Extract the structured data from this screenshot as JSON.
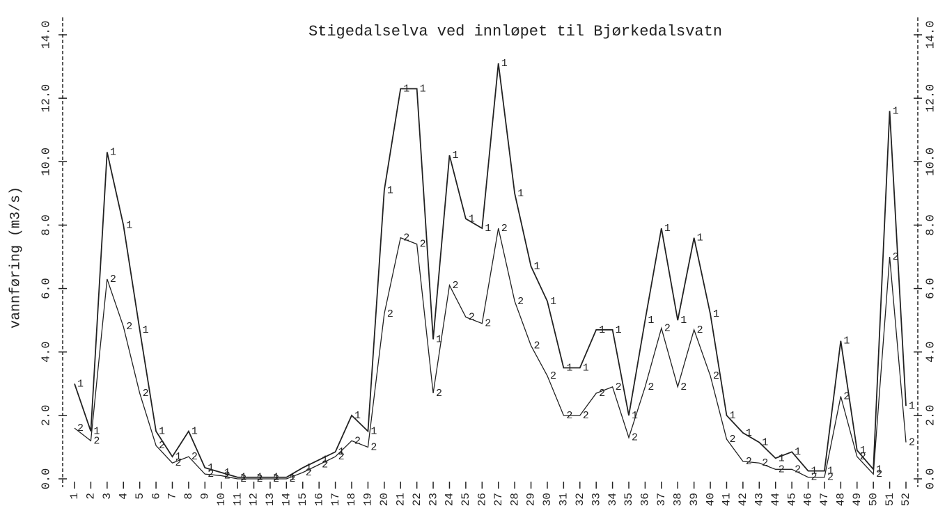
{
  "chart_data": {
    "type": "line",
    "title": "Stigedalselva ved innløpet til Bjørkedalsvatn",
    "y_label": "vannføring (m3/s)",
    "categories": [
      "1",
      "2",
      "3",
      "4",
      "5",
      "6",
      "7",
      "8",
      "9",
      "10",
      "11",
      "12",
      "13",
      "14",
      "15",
      "16",
      "17",
      "18",
      "19",
      "20",
      "21",
      "22",
      "23",
      "24",
      "25",
      "26",
      "27",
      "28",
      "29",
      "30",
      "31",
      "32",
      "33",
      "34",
      "35",
      "36",
      "37",
      "38",
      "39",
      "40",
      "41",
      "42",
      "43",
      "44",
      "45",
      "46",
      "47",
      "48",
      "49",
      "50",
      "51",
      "52"
    ],
    "series": [
      {
        "name": "1",
        "color": "#222222",
        "values": [
          3.0,
          1.5,
          10.3,
          8.0,
          4.7,
          1.5,
          0.7,
          1.5,
          0.35,
          0.2,
          0.05,
          0.05,
          0.05,
          0.05,
          0.35,
          0.6,
          0.85,
          2.0,
          1.5,
          9.1,
          12.3,
          12.3,
          4.4,
          10.2,
          8.2,
          7.9,
          13.1,
          9.0,
          6.7,
          5.6,
          3.5,
          3.5,
          4.7,
          4.7,
          2.0,
          5.0,
          7.9,
          5.0,
          7.6,
          5.2,
          2.0,
          1.45,
          1.15,
          0.65,
          0.85,
          0.25,
          0.25,
          4.35,
          0.9,
          0.3,
          11.6,
          2.3
        ]
      },
      {
        "name": "2",
        "color": "#222222",
        "values": [
          1.6,
          1.2,
          6.3,
          4.8,
          2.7,
          1.05,
          0.5,
          0.7,
          0.15,
          0.1,
          0,
          0,
          0,
          0,
          0.2,
          0.45,
          0.7,
          1.2,
          1.0,
          5.2,
          7.6,
          7.4,
          2.7,
          6.1,
          5.1,
          4.9,
          7.9,
          5.6,
          4.2,
          3.25,
          2.0,
          2.0,
          2.7,
          2.9,
          1.3,
          2.9,
          4.75,
          2.9,
          4.7,
          3.25,
          1.25,
          0.55,
          0.5,
          0.3,
          0.3,
          0.05,
          0.05,
          2.6,
          0.7,
          0.15,
          7.0,
          1.15
        ]
      }
    ],
    "ylim": [
      0,
      14
    ],
    "yticks": [
      {
        "value": 0,
        "label": "0.0"
      },
      {
        "value": 2,
        "label": "2.0"
      },
      {
        "value": 4,
        "label": "4.0"
      },
      {
        "value": 6,
        "label": "6.0"
      },
      {
        "value": 8,
        "label": "8.0"
      },
      {
        "value": 10,
        "label": "10.0"
      },
      {
        "value": 12,
        "label": "12.0"
      },
      {
        "value": 14,
        "label": "14.0"
      }
    ]
  }
}
